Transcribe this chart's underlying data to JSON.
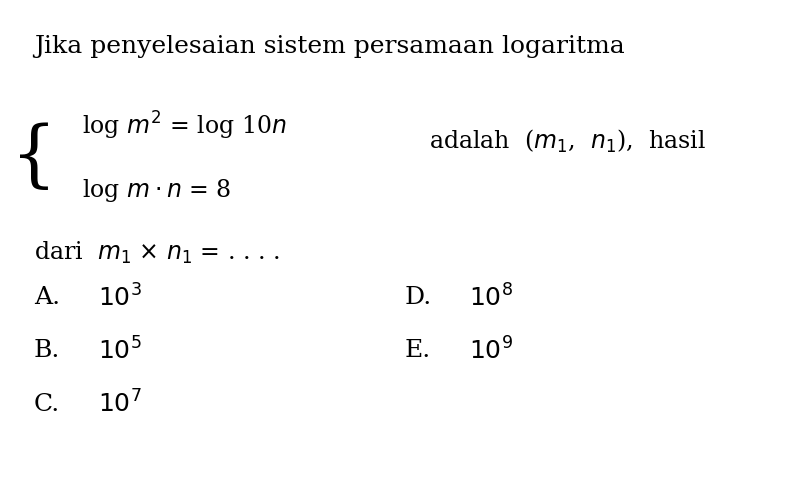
{
  "background_color": "#ffffff",
  "title_line": "Jika penyelesaian sistem persamaan logaritma",
  "eq1": "log $m^2$ = log 10$n$",
  "eq2": "log $m \\cdot n$ = 8",
  "adalah_text": "adalah  ($m_1$,  $n_1$),  hasil",
  "dari_text": "dari  $m_1$ × $n_1$ = . . . .",
  "options": [
    {
      "label": "A.",
      "value": "$10^3$"
    },
    {
      "label": "B.",
      "value": "$10^5$"
    },
    {
      "label": "C.",
      "value": "$10^7$"
    },
    {
      "label": "D.",
      "value": "$10^8$"
    },
    {
      "label": "E.",
      "value": "$10^9$"
    }
  ],
  "font_size_title": 18,
  "font_size_eq": 17,
  "font_size_options": 18,
  "text_color": "#000000"
}
